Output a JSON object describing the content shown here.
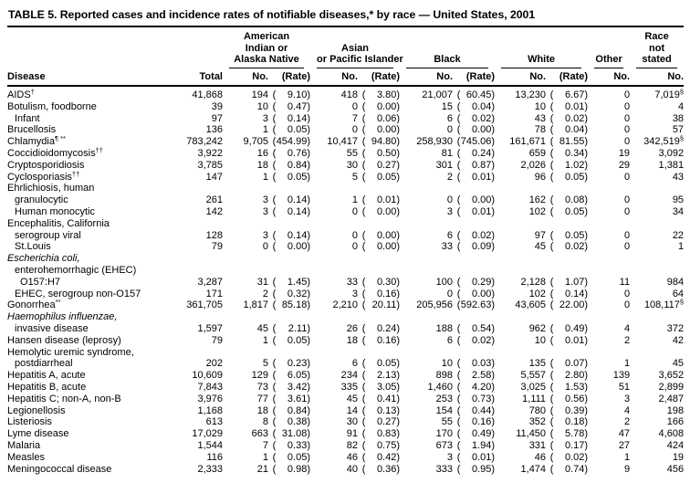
{
  "title": "TABLE 5. Reported cases and incidence rates of notifiable diseases,* by race — United States, 2001",
  "header": {
    "disease": "Disease",
    "total": "Total",
    "groups": [
      {
        "label_lines": [
          "American",
          "Indian or",
          "Alaska Native"
        ],
        "cols": [
          "No.",
          "(Rate)"
        ]
      },
      {
        "label_lines": [
          "Asian",
          "or Pacific Islander"
        ],
        "cols": [
          "No.",
          "(Rate)"
        ]
      },
      {
        "label_lines": [
          "Black"
        ],
        "cols": [
          "No.",
          "(Rate)"
        ]
      },
      {
        "label_lines": [
          "White"
        ],
        "cols": [
          "No.",
          "(Rate)"
        ]
      },
      {
        "label_lines": [
          "Other"
        ],
        "cols": [
          "No."
        ]
      },
      {
        "label_lines": [
          "Race",
          "not",
          "stated"
        ],
        "cols": [
          "No."
        ]
      }
    ]
  },
  "rows": [
    {
      "label": "AIDS",
      "sup": "†",
      "total": "41,868",
      "aian": [
        "194",
        "9.10"
      ],
      "api": [
        "418",
        "3.80"
      ],
      "black": [
        "21,007",
        "60.45"
      ],
      "white": [
        "13,230",
        "6.67"
      ],
      "other": "0",
      "ns": "7,019",
      "ns_sup": "§"
    },
    {
      "label": "Botulism, foodborne",
      "total": "39",
      "aian": [
        "10",
        "0.47"
      ],
      "api": [
        "0",
        "0.00"
      ],
      "black": [
        "15",
        "0.04"
      ],
      "white": [
        "10",
        "0.01"
      ],
      "other": "0",
      "ns": "4"
    },
    {
      "label": "Infant",
      "indent": 1,
      "total": "97",
      "aian": [
        "3",
        "0.14"
      ],
      "api": [
        "7",
        "0.06"
      ],
      "black": [
        "6",
        "0.02"
      ],
      "white": [
        "43",
        "0.02"
      ],
      "other": "0",
      "ns": "38"
    },
    {
      "label": "Brucellosis",
      "total": "136",
      "aian": [
        "1",
        "0.05"
      ],
      "api": [
        "0",
        "0.00"
      ],
      "black": [
        "0",
        "0.00"
      ],
      "white": [
        "78",
        "0.04"
      ],
      "other": "0",
      "ns": "57"
    },
    {
      "label": "Chlamydia",
      "sup": "¶ **",
      "total": "783,242",
      "aian": [
        "9,705",
        "454.99"
      ],
      "api": [
        "10,417",
        "94.80"
      ],
      "black": [
        "258,930",
        "745.06"
      ],
      "white": [
        "161,671",
        "81.55"
      ],
      "other": "0",
      "ns": "342,519",
      "ns_sup": "§"
    },
    {
      "label": "Coccidioidomycosis",
      "sup": "††",
      "total": "3,922",
      "aian": [
        "16",
        "0.76"
      ],
      "api": [
        "55",
        "0.50"
      ],
      "black": [
        "81",
        "0.24"
      ],
      "white": [
        "659",
        "0.34"
      ],
      "other": "19",
      "ns": "3,092"
    },
    {
      "label": "Cryptosporidiosis",
      "total": "3,785",
      "aian": [
        "18",
        "0.84"
      ],
      "api": [
        "30",
        "0.27"
      ],
      "black": [
        "301",
        "0.87"
      ],
      "white": [
        "2,026",
        "1.02"
      ],
      "other": "29",
      "ns": "1,381"
    },
    {
      "label": "Cyclosporiasis",
      "sup": "††",
      "total": "147",
      "aian": [
        "1",
        "0.05"
      ],
      "api": [
        "5",
        "0.05"
      ],
      "black": [
        "2",
        "0.01"
      ],
      "white": [
        "96",
        "0.05"
      ],
      "other": "0",
      "ns": "43"
    },
    {
      "label": "Ehrlichiosis, human"
    },
    {
      "label": "granulocytic",
      "indent": 1,
      "total": "261",
      "aian": [
        "3",
        "0.14"
      ],
      "api": [
        "1",
        "0.01"
      ],
      "black": [
        "0",
        "0.00"
      ],
      "white": [
        "162",
        "0.08"
      ],
      "other": "0",
      "ns": "95"
    },
    {
      "label": "Human monocytic",
      "indent": 1,
      "total": "142",
      "aian": [
        "3",
        "0.14"
      ],
      "api": [
        "0",
        "0.00"
      ],
      "black": [
        "3",
        "0.01"
      ],
      "white": [
        "102",
        "0.05"
      ],
      "other": "0",
      "ns": "34"
    },
    {
      "label": "Encephalitis, California"
    },
    {
      "label": "serogroup viral",
      "indent": 1,
      "total": "128",
      "aian": [
        "3",
        "0.14"
      ],
      "api": [
        "0",
        "0.00"
      ],
      "black": [
        "6",
        "0.02"
      ],
      "white": [
        "97",
        "0.05"
      ],
      "other": "0",
      "ns": "22"
    },
    {
      "label": "St.Louis",
      "indent": 1,
      "total": "79",
      "aian": [
        "0",
        "0.00"
      ],
      "api": [
        "0",
        "0.00"
      ],
      "black": [
        "33",
        "0.09"
      ],
      "white": [
        "45",
        "0.02"
      ],
      "other": "0",
      "ns": "1"
    },
    {
      "label": "Escherichia coli,",
      "italic": true
    },
    {
      "label": "enterohemorrhagic (EHEC)",
      "indent": 1
    },
    {
      "label": "O157:H7",
      "indent": 2,
      "total": "3,287",
      "aian": [
        "31",
        "1.45"
      ],
      "api": [
        "33",
        "0.30"
      ],
      "black": [
        "100",
        "0.29"
      ],
      "white": [
        "2,128",
        "1.07"
      ],
      "other": "11",
      "ns": "984"
    },
    {
      "label": "EHEC, serogroup non-O157",
      "indent": 1,
      "total": "171",
      "aian": [
        "2",
        "0.32"
      ],
      "api": [
        "3",
        "0.16"
      ],
      "black": [
        "0",
        "0.00"
      ],
      "white": [
        "102",
        "0.14"
      ],
      "other": "0",
      "ns": "64"
    },
    {
      "label": "Gonorrhea",
      "sup": "**",
      "total": "361,705",
      "aian": [
        "1,817",
        "85.18"
      ],
      "api": [
        "2,210",
        "20.11"
      ],
      "black": [
        "205,956",
        "592.63"
      ],
      "white": [
        "43,605",
        "22.00"
      ],
      "other": "0",
      "ns": "108,117",
      "ns_sup": "§"
    },
    {
      "label": "Haemophilus influenzae,",
      "italic": true
    },
    {
      "label": "invasive disease",
      "indent": 1,
      "total": "1,597",
      "aian": [
        "45",
        "2.11"
      ],
      "api": [
        "26",
        "0.24"
      ],
      "black": [
        "188",
        "0.54"
      ],
      "white": [
        "962",
        "0.49"
      ],
      "other": "4",
      "ns": "372"
    },
    {
      "label": "Hansen disease (leprosy)",
      "total": "79",
      "aian": [
        "1",
        "0.05"
      ],
      "api": [
        "18",
        "0.16"
      ],
      "black": [
        "6",
        "0.02"
      ],
      "white": [
        "10",
        "0.01"
      ],
      "other": "2",
      "ns": "42"
    },
    {
      "label": "Hemolytic uremic syndrome,"
    },
    {
      "label": "postdiarrheal",
      "indent": 1,
      "total": "202",
      "aian": [
        "5",
        "0.23"
      ],
      "api": [
        "6",
        "0.05"
      ],
      "black": [
        "10",
        "0.03"
      ],
      "white": [
        "135",
        "0.07"
      ],
      "other": "1",
      "ns": "45"
    },
    {
      "label": "Hepatitis A, acute",
      "total": "10,609",
      "aian": [
        "129",
        "6.05"
      ],
      "api": [
        "234",
        "2.13"
      ],
      "black": [
        "898",
        "2.58"
      ],
      "white": [
        "5,557",
        "2.80"
      ],
      "other": "139",
      "ns": "3,652"
    },
    {
      "label": "Hepatitis B, acute",
      "total": "7,843",
      "aian": [
        "73",
        "3.42"
      ],
      "api": [
        "335",
        "3.05"
      ],
      "black": [
        "1,460",
        "4.20"
      ],
      "white": [
        "3,025",
        "1.53"
      ],
      "other": "51",
      "ns": "2,899"
    },
    {
      "label": "Hepatitis C; non-A, non-B",
      "total": "3,976",
      "aian": [
        "77",
        "3.61"
      ],
      "api": [
        "45",
        "0.41"
      ],
      "black": [
        "253",
        "0.73"
      ],
      "white": [
        "1,111",
        "0.56"
      ],
      "other": "3",
      "ns": "2,487"
    },
    {
      "label": "Legionellosis",
      "total": "1,168",
      "aian": [
        "18",
        "0.84"
      ],
      "api": [
        "14",
        "0.13"
      ],
      "black": [
        "154",
        "0.44"
      ],
      "white": [
        "780",
        "0.39"
      ],
      "other": "4",
      "ns": "198"
    },
    {
      "label": "Listeriosis",
      "total": "613",
      "aian": [
        "8",
        "0.38"
      ],
      "api": [
        "30",
        "0.27"
      ],
      "black": [
        "55",
        "0.16"
      ],
      "white": [
        "352",
        "0.18"
      ],
      "other": "2",
      "ns": "166"
    },
    {
      "label": "Lyme disease",
      "total": "17,029",
      "aian": [
        "663",
        "31.08"
      ],
      "api": [
        "91",
        "0.83"
      ],
      "black": [
        "170",
        "0.49"
      ],
      "white": [
        "11,450",
        "5.78"
      ],
      "other": "47",
      "ns": "4,608"
    },
    {
      "label": "Malaria",
      "total": "1,544",
      "aian": [
        "7",
        "0.33"
      ],
      "api": [
        "82",
        "0.75"
      ],
      "black": [
        "673",
        "1.94"
      ],
      "white": [
        "331",
        "0.17"
      ],
      "other": "27",
      "ns": "424"
    },
    {
      "label": "Measles",
      "total": "116",
      "aian": [
        "1",
        "0.05"
      ],
      "api": [
        "46",
        "0.42"
      ],
      "black": [
        "3",
        "0.01"
      ],
      "white": [
        "46",
        "0.02"
      ],
      "other": "1",
      "ns": "19"
    },
    {
      "label": "Meningococcal disease",
      "total": "2,333",
      "aian": [
        "21",
        "0.98"
      ],
      "api": [
        "40",
        "0.36"
      ],
      "black": [
        "333",
        "0.95"
      ],
      "white": [
        "1,474",
        "0.74"
      ],
      "other": "9",
      "ns": "456"
    }
  ]
}
